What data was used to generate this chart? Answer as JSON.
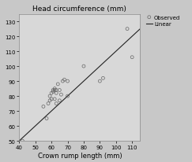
{
  "title": "Head circumference (mm)",
  "xlabel": "Crown rump length (mm)",
  "xlim": [
    40,
    115
  ],
  "ylim": [
    50,
    135
  ],
  "xticks": [
    40,
    50,
    60,
    70,
    80,
    90,
    100,
    110
  ],
  "yticks": [
    50,
    60,
    70,
    80,
    90,
    100,
    110,
    120,
    130
  ],
  "scatter_x": [
    42,
    42,
    55,
    57,
    58,
    59,
    59,
    60,
    60,
    61,
    61,
    62,
    62,
    62,
    63,
    63,
    63,
    64,
    65,
    65,
    66,
    67,
    68,
    70,
    70,
    80,
    90,
    92,
    107,
    110
  ],
  "scatter_y": [
    50,
    46,
    73,
    65,
    75,
    77,
    80,
    82,
    78,
    83,
    84,
    84,
    85,
    78,
    84,
    82,
    75,
    88,
    84,
    77,
    81,
    90,
    91,
    80,
    90,
    100,
    90,
    92,
    125,
    106
  ],
  "line_x": [
    40,
    115
  ],
  "line_y": [
    50,
    125
  ],
  "bg_color": "#c8c8c8",
  "plot_bg_color": "#d8d8d8",
  "scatter_edge_color": "#666666",
  "line_color": "#222222",
  "legend_labels": [
    "Observed",
    "Linear"
  ],
  "title_fontsize": 6.5,
  "label_fontsize": 6,
  "tick_fontsize": 5,
  "legend_fontsize": 5
}
